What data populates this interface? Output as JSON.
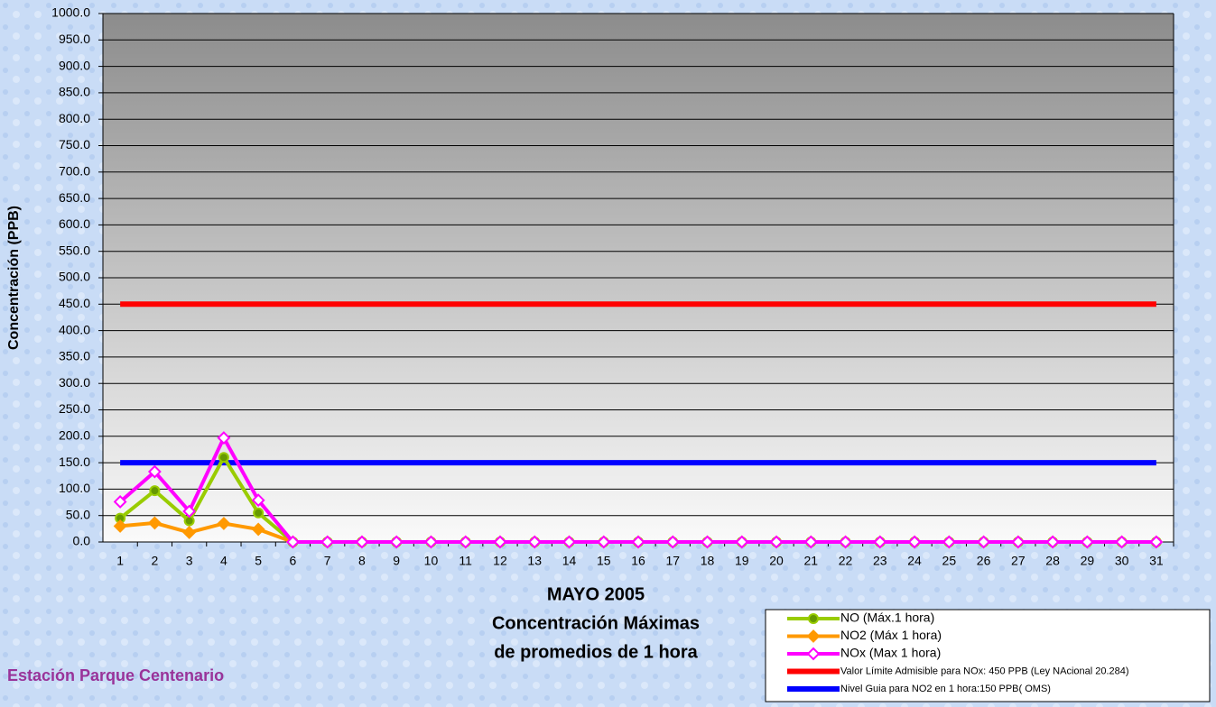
{
  "chart_data": {
    "type": "line",
    "station": "Estación Parque Centenario",
    "ylabel": "Concentración  (PPB)",
    "xlabel": [
      "MAYO 2005",
      "Concentración Máximas",
      "de promedios de 1 hora"
    ],
    "categories": [
      1,
      2,
      3,
      4,
      5,
      6,
      7,
      8,
      9,
      10,
      11,
      12,
      13,
      14,
      15,
      16,
      17,
      18,
      19,
      20,
      21,
      22,
      23,
      24,
      25,
      26,
      27,
      28,
      29,
      30,
      31
    ],
    "ylim": [
      0,
      1000
    ],
    "yticks": [
      {
        "value": 0,
        "label": "0.0"
      },
      {
        "value": 50,
        "label": "50.0"
      },
      {
        "value": 100,
        "label": "100.0"
      },
      {
        "value": 150,
        "label": "150.0"
      },
      {
        "value": 200,
        "label": "200.0"
      },
      {
        "value": 250,
        "label": "250.0"
      },
      {
        "value": 300,
        "label": "300.0"
      },
      {
        "value": 350,
        "label": "350.0"
      },
      {
        "value": 400,
        "label": "400.0"
      },
      {
        "value": 450,
        "label": "450.0"
      },
      {
        "value": 500,
        "label": "500.0"
      },
      {
        "value": 550,
        "label": "550.0"
      },
      {
        "value": 600,
        "label": "600.0"
      },
      {
        "value": 650,
        "label": "650.0"
      },
      {
        "value": 700,
        "label": "700.0"
      },
      {
        "value": 750,
        "label": "750.0"
      },
      {
        "value": 800,
        "label": "800.0"
      },
      {
        "value": 850,
        "label": "850.0"
      },
      {
        "value": 900,
        "label": "900.0"
      },
      {
        "value": 950,
        "label": "950.0"
      },
      {
        "value": 1000,
        "label": "1000.0"
      }
    ],
    "grid": true,
    "legend": "bottom-right",
    "series": [
      {
        "name": "NO (Máx.1 hora)",
        "color": "#99cc00",
        "marker": "circle",
        "values": [
          45,
          97,
          40,
          160,
          55,
          0,
          0,
          0,
          0,
          0,
          0,
          0,
          0,
          0,
          0,
          0,
          0,
          0,
          0,
          0,
          0,
          0,
          0,
          0,
          0,
          0,
          0,
          0,
          0,
          0,
          0
        ]
      },
      {
        "name": "NO2 (Máx 1 hora)",
        "color": "#ff9900",
        "marker": "diamond",
        "values": [
          30,
          36,
          18,
          35,
          24,
          0,
          0,
          0,
          0,
          0,
          0,
          0,
          0,
          0,
          0,
          0,
          0,
          0,
          0,
          0,
          0,
          0,
          0,
          0,
          0,
          0,
          0,
          0,
          0,
          0,
          0
        ]
      },
      {
        "name": "NOx (Max 1 hora)",
        "color": "#ff00ff",
        "marker": "diamond",
        "values": [
          76,
          133,
          58,
          197,
          79,
          0,
          0,
          0,
          0,
          0,
          0,
          0,
          0,
          0,
          0,
          0,
          0,
          0,
          0,
          0,
          0,
          0,
          0,
          0,
          0,
          0,
          0,
          0,
          0,
          0,
          0
        ]
      },
      {
        "name": "Valor Límite Admisible para NOx: 450 PPB (Ley NAcional 20.284)",
        "color": "#ff0000",
        "marker": null,
        "values": [
          450,
          450,
          450,
          450,
          450,
          450,
          450,
          450,
          450,
          450,
          450,
          450,
          450,
          450,
          450,
          450,
          450,
          450,
          450,
          450,
          450,
          450,
          450,
          450,
          450,
          450,
          450,
          450,
          450,
          450,
          450
        ]
      },
      {
        "name": "Nivel Guia para NO2 en 1 hora:150 PPB( OMS)",
        "color": "#0000ff",
        "marker": null,
        "values": [
          150,
          150,
          150,
          150,
          150,
          150,
          150,
          150,
          150,
          150,
          150,
          150,
          150,
          150,
          150,
          150,
          150,
          150,
          150,
          150,
          150,
          150,
          150,
          150,
          150,
          150,
          150,
          150,
          150,
          150,
          150
        ]
      }
    ]
  }
}
